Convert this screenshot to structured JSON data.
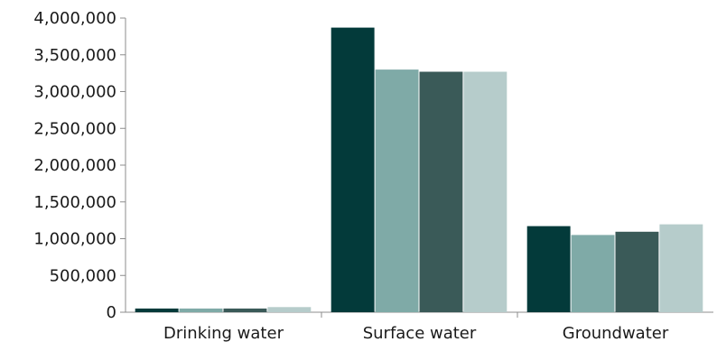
{
  "chart_data": {
    "type": "bar",
    "categories": [
      "Drinking water",
      "Surface water",
      "Groundwater"
    ],
    "series": [
      {
        "values": [
          50000,
          3870000,
          1170000
        ],
        "color": "#033a3a"
      },
      {
        "values": [
          50000,
          3300000,
          1050000
        ],
        "color": "#7faaa7"
      },
      {
        "values": [
          50000,
          3270000,
          1095000
        ],
        "color": "#3a5a58"
      },
      {
        "values": [
          70000,
          3270000,
          1195000
        ],
        "color": "#b6cccb"
      }
    ],
    "yticks": [
      "0",
      "500,000",
      "1,000,000",
      "1,500,000",
      "2,000,000",
      "2,500,000",
      "3,000,000",
      "3,500,000",
      "4,000,000"
    ],
    "ylim": [
      0,
      4000000
    ],
    "grid": false,
    "legend": "none"
  }
}
